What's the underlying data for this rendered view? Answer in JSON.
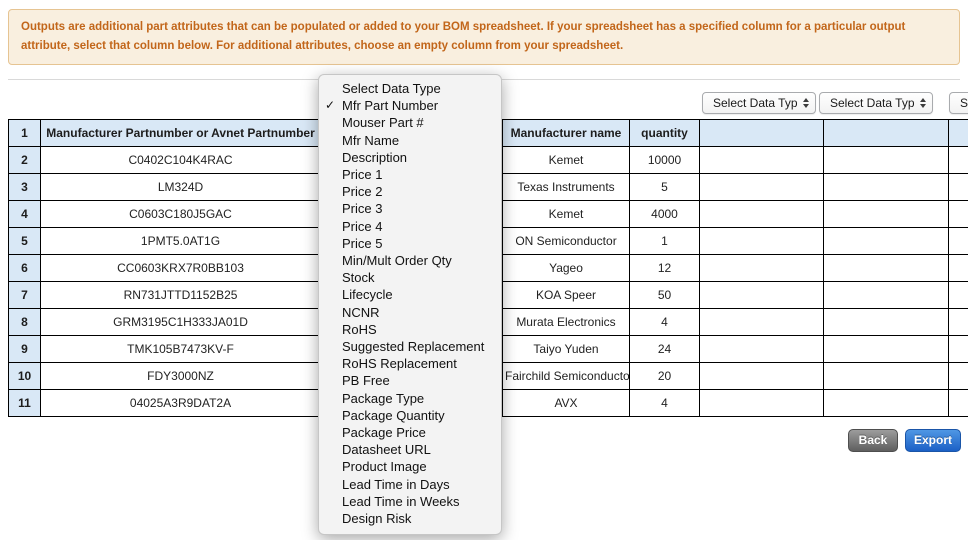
{
  "notice": {
    "text": "Outputs are additional part attributes that can be populated or added to your BOM spreadsheet. If your spreadsheet has a specified column for a particular output attribute, select that column below. For additional attributes, choose an empty column from your spreadsheet."
  },
  "output_selects": [
    {
      "label": "Select Data Type"
    },
    {
      "label": "Select Data Type"
    },
    {
      "label": "Select Data Type"
    }
  ],
  "dropdown_menu": {
    "selected": "Mfr Part Number",
    "items": [
      {
        "label": "Select Data Type",
        "checked": false
      },
      {
        "label": "Mfr Part Number",
        "checked": true
      },
      {
        "label": "Mouser Part #",
        "checked": false
      },
      {
        "label": "Mfr Name",
        "checked": false
      },
      {
        "label": "Description",
        "checked": false
      },
      {
        "label": "Price 1",
        "checked": false
      },
      {
        "label": "Price 2",
        "checked": false
      },
      {
        "label": "Price 3",
        "checked": false
      },
      {
        "label": "Price 4",
        "checked": false
      },
      {
        "label": "Price 5",
        "checked": false
      },
      {
        "label": "Min/Mult Order Qty",
        "checked": false
      },
      {
        "label": "Stock",
        "checked": false
      },
      {
        "label": "Lifecycle",
        "checked": false
      },
      {
        "label": "NCNR",
        "checked": false
      },
      {
        "label": "RoHS",
        "checked": false
      },
      {
        "label": "Suggested Replacement",
        "checked": false
      },
      {
        "label": "RoHS Replacement",
        "checked": false
      },
      {
        "label": "PB Free",
        "checked": false
      },
      {
        "label": "Package Type",
        "checked": false
      },
      {
        "label": "Package Quantity",
        "checked": false
      },
      {
        "label": "Package Price",
        "checked": false
      },
      {
        "label": "Datasheet URL",
        "checked": false
      },
      {
        "label": "Product Image",
        "checked": false
      },
      {
        "label": "Lead Time in Days",
        "checked": false
      },
      {
        "label": "Lead Time in Weeks",
        "checked": false
      },
      {
        "label": "Design Risk",
        "checked": false
      }
    ]
  },
  "table": {
    "headers": {
      "row_number": "1",
      "partnumber": "Manufacturer Partnumber or Avnet Partnumber",
      "manufacturer": "Manufacturer name",
      "quantity": "quantity"
    },
    "rows": [
      {
        "num": "2",
        "part": "C0402C104K4RAC",
        "mfr": "Kemet",
        "qty": "10000"
      },
      {
        "num": "3",
        "part": "LM324D",
        "mfr": "Texas Instruments",
        "qty": "5"
      },
      {
        "num": "4",
        "part": "C0603C180J5GAC",
        "mfr": "Kemet",
        "qty": "4000"
      },
      {
        "num": "5",
        "part": "1PMT5.0AT1G",
        "mfr": "ON Semiconductor",
        "qty": "1"
      },
      {
        "num": "6",
        "part": "CC0603KRX7R0BB103",
        "mfr": "Yageo",
        "qty": "12"
      },
      {
        "num": "7",
        "part": "RN731JTTD1152B25",
        "mfr": "KOA Speer",
        "qty": "50"
      },
      {
        "num": "8",
        "part": "GRM3195C1H333JA01D",
        "mfr": "Murata Electronics",
        "qty": "4"
      },
      {
        "num": "9",
        "part": "TMK105B7473KV-F",
        "mfr": "Taiyo Yuden",
        "qty": "24"
      },
      {
        "num": "10",
        "part": "FDY3000NZ",
        "mfr": "Fairchild Semiconductor",
        "qty": "20"
      },
      {
        "num": "11",
        "part": "04025A3R9DAT2A",
        "mfr": "AVX",
        "qty": "4"
      }
    ]
  },
  "buttons": {
    "back": "Back",
    "export": "Export"
  },
  "icons": {
    "menu_check": "checkmark-icon",
    "select_arrows": "updown-arrows-icon"
  },
  "colors": {
    "notice_text": "#c2661a",
    "notice_bg": "#f9efdf",
    "header_blue": "#d9e8f6",
    "back_button": "#6f6f6f",
    "export_button": "#2b6fc9"
  }
}
